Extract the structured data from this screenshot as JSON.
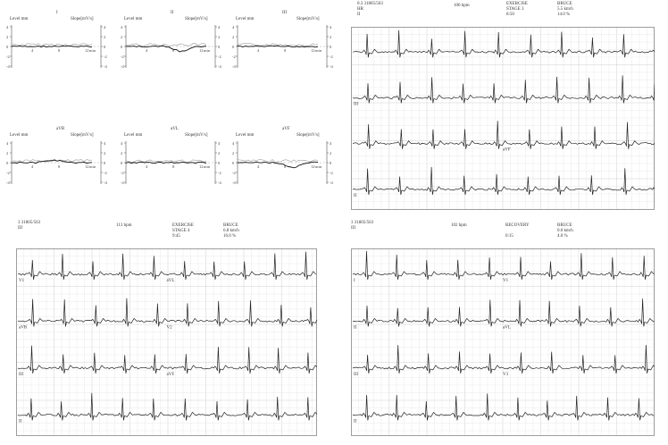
{
  "trend_panels": [
    {
      "lead": "I",
      "left_label": "Level mm",
      "right_label": "Slope[mV/s]",
      "left_ticks": [
        "4",
        "2",
        "0",
        "-2",
        "-4"
      ],
      "right_ticks": [
        "4",
        "2",
        "0",
        "-2",
        "-4"
      ],
      "x_ticks": [
        "4",
        "8",
        "12"
      ],
      "x_unit": "min"
    },
    {
      "lead": "II",
      "left_label": "Level mm",
      "right_label": "Slope[mV/s]",
      "left_ticks": [
        "4",
        "2",
        "0",
        "-2",
        "-4"
      ],
      "right_ticks": [
        "4",
        "2",
        "0",
        "-2",
        "-4"
      ],
      "x_ticks": [
        "4",
        "8",
        "12"
      ],
      "x_unit": "min"
    },
    {
      "lead": "III",
      "left_label": "Level mm",
      "right_label": "Slope[mV/s]",
      "left_ticks": [
        "4",
        "2",
        "0",
        "-2",
        "-4"
      ],
      "right_ticks": [
        "4",
        "2",
        "0",
        "-2",
        "-4"
      ],
      "x_ticks": [
        "4",
        "8",
        "12"
      ],
      "x_unit": "min"
    },
    {
      "lead": "aVR",
      "left_label": "Level mm",
      "right_label": "Slope[mV/s]",
      "left_ticks": [
        "4",
        "2",
        "0",
        "-2",
        "-4"
      ],
      "right_ticks": [
        "4",
        "2",
        "0",
        "-2",
        "-4"
      ],
      "x_ticks": [
        "4",
        "8",
        "12"
      ],
      "x_unit": "min"
    },
    {
      "lead": "aVL",
      "left_label": "Level mm",
      "right_label": "Slope[mV/s]",
      "left_ticks": [
        "4",
        "2",
        "0",
        "-2",
        "-4"
      ],
      "right_ticks": [
        "4",
        "2",
        "0",
        "-2",
        "-4"
      ],
      "x_ticks": [
        "4",
        "8",
        "12"
      ],
      "x_unit": "min"
    },
    {
      "lead": "aVF",
      "left_label": "Level mm",
      "right_label": "Slope[mV/s]",
      "left_ticks": [
        "4",
        "2",
        "0",
        "-2",
        "-4"
      ],
      "right_ticks": [
        "4",
        "2",
        "0",
        "-2",
        "-4"
      ],
      "x_ticks": [
        "4",
        "8",
        "12"
      ],
      "x_unit": "min"
    }
  ],
  "ecg_blocks": [
    {
      "id": "top-right",
      "header": {
        "patient": "0.3  31805/563",
        "lead": "HR",
        "lead2": "II",
        "hr": "100 bpm",
        "phase": "EXERCISE",
        "stage": "STAGE 3",
        "time": "8:50",
        "protocol": "BRUCE",
        "speed": "5.5 km/h",
        "grade": "14.0 %"
      },
      "rows": [
        {
          "left": "",
          "right": ""
        },
        {
          "left": "III",
          "right": ""
        },
        {
          "left": "",
          "right": "aVF"
        },
        {
          "left": "II",
          "right": ""
        }
      ]
    },
    {
      "id": "bottom-left",
      "header": {
        "patient": "3  31805/563",
        "lead": "III",
        "lead2": "",
        "hr": "113 bpm",
        "phase": "EXERCISE",
        "stage": "STAGE 4",
        "time": "9:45",
        "protocol": "BRUCE",
        "speed": "6.8 km/h",
        "grade": "16.0 %"
      },
      "rows": [
        {
          "left": "V1",
          "right": "aVL"
        },
        {
          "left": "aVR",
          "right": "V2"
        },
        {
          "left": "III",
          "right": "aVF"
        },
        {
          "left": "II",
          "right": ""
        }
      ]
    },
    {
      "id": "bottom-right",
      "header": {
        "patient": "3  31805/563",
        "lead": "III",
        "lead2": "",
        "hr": "102 bpm",
        "phase": "RECOVERY",
        "stage": "",
        "time": "0:15",
        "protocol": "BRUCE",
        "speed": "0.0 km/h",
        "grade": "4.0 %"
      },
      "rows": [
        {
          "left": "I",
          "right": "V1"
        },
        {
          "left": "II",
          "right": "aVL"
        },
        {
          "left": "III",
          "right": "V3"
        },
        {
          "left": "II",
          "right": ""
        }
      ]
    }
  ]
}
